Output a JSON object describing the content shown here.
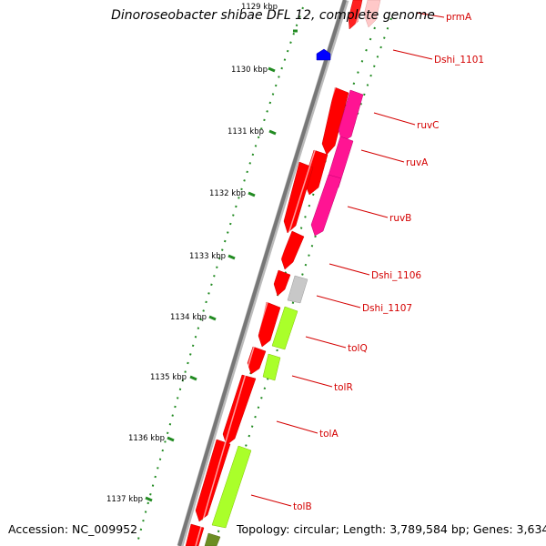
{
  "title": "Dinoroseobacter shibae DFL 12, complete genome",
  "accession": "Accession: NC_009952",
  "topology": "Topology: circular; Length: 3,789,584 bp; Genes: 3,634",
  "scale_labels": [
    "1129 kbp",
    "1130 kbp",
    "1131 kbp",
    "1132 kbp",
    "1133 kbp",
    "1134 kbp",
    "1135 kbp",
    "1136 kbp",
    "1137 kbp"
  ],
  "gene_labels": [
    "prmA",
    "Dshi_1101",
    "ruvC",
    "ruvA",
    "ruvB",
    "Dshi_1106",
    "Dshi_1107",
    "tolQ",
    "tolR",
    "tolA",
    "tolB"
  ],
  "colors": {
    "cds": "#ff0000",
    "ruv": "#ff1493",
    "tol": "#aaff2a",
    "hypothetical": "#c8c8c8",
    "pointer": "#0000ff",
    "tick": "#228b22",
    "backbone": "#7a7a7a",
    "label": "#d40000"
  }
}
